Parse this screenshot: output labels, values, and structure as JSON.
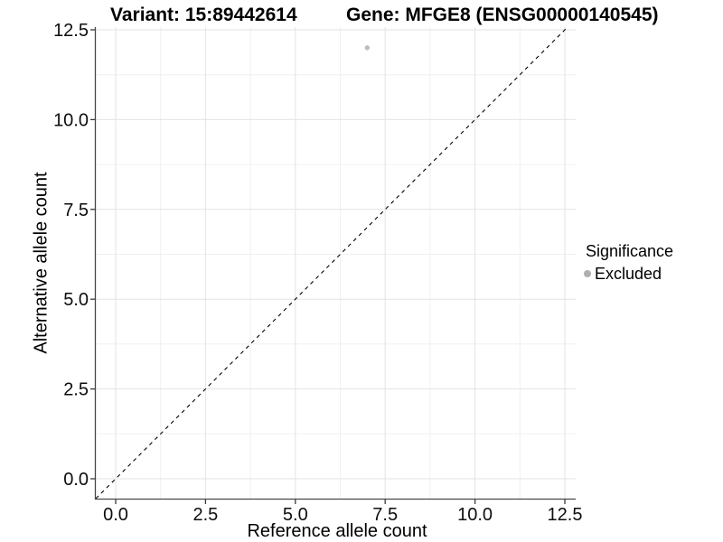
{
  "titles": {
    "variant": "Variant: 15:89442614",
    "gene": "Gene: MFGE8 (ENSG00000140545)"
  },
  "chart_data": {
    "type": "scatter",
    "title_left": "Variant: 15:89442614",
    "title_right": "Gene: MFGE8 (ENSG00000140545)",
    "xlabel": "Reference allele count",
    "ylabel": "Alternative allele count",
    "x_ticks": [
      0.0,
      2.5,
      5.0,
      7.5,
      10.0,
      12.5
    ],
    "y_ticks": [
      0.0,
      2.5,
      5.0,
      7.5,
      10.0,
      12.5
    ],
    "x_tick_labels": [
      "0.0",
      "2.5",
      "5.0",
      "7.5",
      "10.0",
      "12.5"
    ],
    "y_tick_labels": [
      "0.0",
      "2.5",
      "5.0",
      "7.5",
      "10.0",
      "12.5"
    ],
    "x_range": [
      -0.6,
      12.8
    ],
    "y_range": [
      -0.55,
      12.6
    ],
    "grid": "major and minor gridlines, light grey on white",
    "reference_line": {
      "kind": "identity y=x",
      "style": "dashed",
      "color": "#000000"
    },
    "series": [
      {
        "name": "Excluded",
        "color": "#bdbdbd",
        "points": [
          {
            "x": 7,
            "y": 12
          }
        ]
      }
    ],
    "legend": {
      "title": "Significance",
      "position": "right",
      "items": [
        {
          "label": "Excluded",
          "color": "#b0b0b0",
          "marker": "circle"
        }
      ]
    }
  },
  "colors": {
    "background": "#ffffff",
    "axis_line": "#474747",
    "tick_mark": "#3a3a3a",
    "grid_major": "#e3e3e3",
    "grid_minor": "#f0f0f0",
    "tick_label": "#0d0d0d",
    "point": "#bdbdbd",
    "dashed_line": "#000000"
  }
}
